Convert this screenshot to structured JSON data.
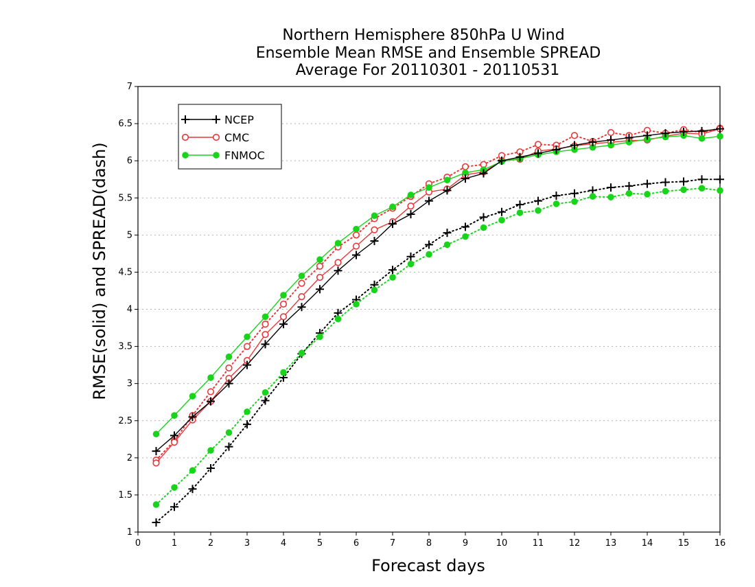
{
  "title_lines": [
    "Northern Hemisphere 850hPa U Wind",
    "Ensemble Mean RMSE and Ensemble SPREAD",
    "Average For 20110301 - 20110531"
  ],
  "chart_data": {
    "type": "line",
    "title": "Northern Hemisphere 850hPa U Wind / Ensemble Mean RMSE and Ensemble SPREAD / Average For 20110301 - 20110531",
    "xlabel": "Forecast days",
    "ylabel": "RMSE(solid) and SPREAD(dash)",
    "xlim": [
      0,
      16
    ],
    "ylim": [
      1,
      7
    ],
    "x_ticks": [
      "0",
      "1",
      "2",
      "3",
      "4",
      "5",
      "6",
      "7",
      "8",
      "9",
      "10",
      "11",
      "12",
      "13",
      "14",
      "15",
      "16"
    ],
    "y_ticks": [
      "1",
      "1.5",
      "2",
      "2.5",
      "3",
      "3.5",
      "4",
      "4.5",
      "5",
      "5.5",
      "6",
      "6.5",
      "7"
    ],
    "grid": true,
    "legend_position": "top-left",
    "x": [
      0.5,
      1,
      1.5,
      2,
      2.5,
      3,
      3.5,
      4,
      4.5,
      5,
      5.5,
      6,
      6.5,
      7,
      7.5,
      8,
      8.5,
      9,
      9.5,
      10,
      10.5,
      11,
      11.5,
      12,
      12.5,
      13,
      13.5,
      14,
      14.5,
      15,
      15.5,
      16
    ],
    "series": [
      {
        "name": "NCEP",
        "metric": "RMSE",
        "line_style": "solid",
        "marker": "plus",
        "color": "#000000",
        "values": [
          2.09,
          2.3,
          2.55,
          2.76,
          3.0,
          3.25,
          3.53,
          3.8,
          4.03,
          4.27,
          4.52,
          4.73,
          4.92,
          5.15,
          5.28,
          5.46,
          5.6,
          5.76,
          5.83,
          6.0,
          6.05,
          6.1,
          6.15,
          6.21,
          6.25,
          6.28,
          6.31,
          6.34,
          6.37,
          6.39,
          6.4,
          6.43
        ]
      },
      {
        "name": "CMC",
        "metric": "RMSE",
        "line_style": "solid",
        "marker": "open-circle",
        "color": "#e8373a",
        "values": [
          1.93,
          2.21,
          2.51,
          2.76,
          3.07,
          3.31,
          3.66,
          3.9,
          4.17,
          4.43,
          4.63,
          4.85,
          5.07,
          5.18,
          5.39,
          5.58,
          5.62,
          5.81,
          5.85,
          6.0,
          6.02,
          6.13,
          6.16,
          6.2,
          6.23,
          6.25,
          6.27,
          6.28,
          6.33,
          6.37,
          6.36,
          6.43
        ]
      },
      {
        "name": "FNMOC",
        "metric": "RMSE",
        "line_style": "solid",
        "marker": "filled-circle",
        "color": "#18d41b",
        "values": [
          2.32,
          2.57,
          2.83,
          3.08,
          3.36,
          3.63,
          3.9,
          4.19,
          4.45,
          4.67,
          4.89,
          5.08,
          5.26,
          5.38,
          5.54,
          5.64,
          5.74,
          5.84,
          5.88,
          5.99,
          6.03,
          6.08,
          6.12,
          6.15,
          6.18,
          6.21,
          6.25,
          6.29,
          6.32,
          6.34,
          6.3,
          6.33
        ]
      },
      {
        "name": "NCEP",
        "metric": "SPREAD",
        "line_style": "dotted",
        "marker": "plus",
        "color": "#000000",
        "values": [
          1.13,
          1.34,
          1.58,
          1.86,
          2.15,
          2.45,
          2.77,
          3.08,
          3.4,
          3.68,
          3.95,
          4.13,
          4.33,
          4.53,
          4.71,
          4.87,
          5.03,
          5.11,
          5.24,
          5.31,
          5.41,
          5.46,
          5.53,
          5.56,
          5.6,
          5.64,
          5.66,
          5.69,
          5.71,
          5.72,
          5.75,
          5.75
        ]
      },
      {
        "name": "CMC",
        "metric": "SPREAD",
        "line_style": "dotted",
        "marker": "open-circle",
        "color": "#e8373a",
        "values": [
          1.97,
          2.23,
          2.57,
          2.89,
          3.21,
          3.5,
          3.8,
          4.07,
          4.35,
          4.58,
          4.84,
          5.0,
          5.22,
          5.36,
          5.52,
          5.69,
          5.78,
          5.92,
          5.95,
          6.07,
          6.12,
          6.22,
          6.21,
          6.34,
          6.26,
          6.38,
          6.34,
          6.41,
          6.37,
          6.42,
          6.38,
          6.44
        ]
      },
      {
        "name": "FNMOC",
        "metric": "SPREAD",
        "line_style": "dotted",
        "marker": "filled-circle",
        "color": "#18d41b",
        "values": [
          1.37,
          1.6,
          1.83,
          2.1,
          2.34,
          2.62,
          2.88,
          3.15,
          3.41,
          3.63,
          3.87,
          4.07,
          4.26,
          4.43,
          4.61,
          4.74,
          4.87,
          4.98,
          5.1,
          5.2,
          5.3,
          5.33,
          5.42,
          5.45,
          5.52,
          5.51,
          5.56,
          5.55,
          5.59,
          5.61,
          5.63,
          5.6
        ]
      }
    ],
    "legend": [
      {
        "label": "NCEP",
        "marker": "plus",
        "color": "#000000"
      },
      {
        "label": "CMC",
        "marker": "open-circle",
        "color": "#e8373a"
      },
      {
        "label": "FNMOC",
        "marker": "filled-circle",
        "color": "#18d41b"
      }
    ]
  }
}
